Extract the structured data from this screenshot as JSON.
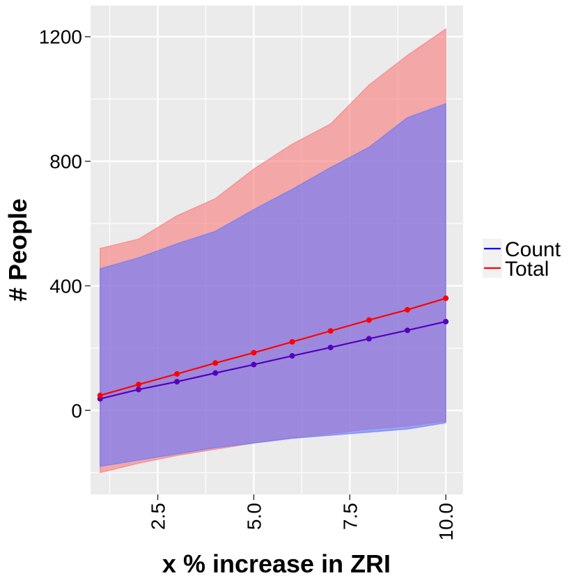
{
  "chart_data": {
    "type": "line",
    "title": "",
    "xlabel": "x % increase in ZRI",
    "ylabel": "# People",
    "xlim": [
      0.75,
      10.45
    ],
    "ylim": [
      -270,
      1300
    ],
    "x_ticks": [
      2.5,
      5.0,
      7.5,
      10.0
    ],
    "x_tick_labels": [
      "2.5",
      "5.0",
      "7.5",
      "10.0"
    ],
    "y_ticks": [
      0,
      400,
      800,
      1200
    ],
    "y_tick_labels": [
      "0",
      "400",
      "800",
      "1200"
    ],
    "grid": true,
    "legend_position": "right",
    "x": [
      1,
      2,
      3,
      4,
      5,
      6,
      7,
      8,
      9,
      10
    ],
    "series": [
      {
        "name": "Count",
        "color": "#0000ff",
        "values": [
          37,
          67,
          92,
          120,
          147,
          175,
          202,
          230,
          257,
          285
        ],
        "lower": [
          -180,
          -160,
          -140,
          -120,
          -105,
          -90,
          -80,
          -70,
          -60,
          -40
        ],
        "upper": [
          455,
          490,
          535,
          575,
          645,
          710,
          780,
          845,
          940,
          985
        ]
      },
      {
        "name": "Total",
        "color": "#ff0000",
        "values": [
          48,
          83,
          117,
          152,
          185,
          220,
          255,
          290,
          323,
          360
        ],
        "lower": [
          -200,
          -170,
          -145,
          -125,
          -105,
          -88,
          -75,
          -60,
          -50,
          -35
        ],
        "upper": [
          520,
          550,
          625,
          680,
          775,
          855,
          920,
          1045,
          1140,
          1225
        ]
      }
    ]
  }
}
